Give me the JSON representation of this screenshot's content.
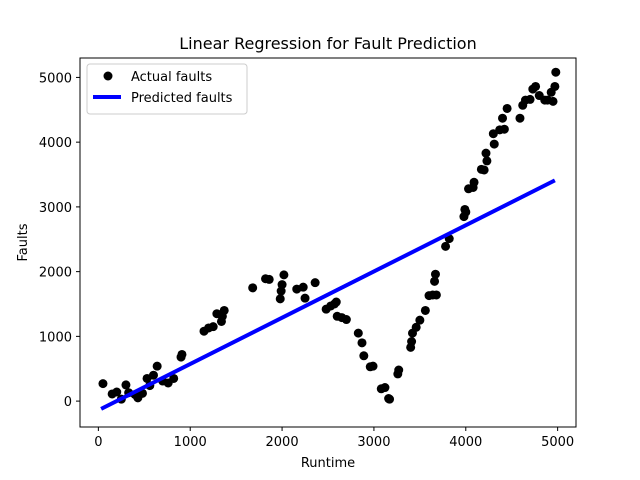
{
  "chart_data": {
    "type": "scatter",
    "title": "Linear Regression for Fault Prediction",
    "xlabel": "Runtime",
    "ylabel": "Faults",
    "xlim": [
      -200,
      5200
    ],
    "ylim": [
      -400,
      5300
    ],
    "xticks": [
      0,
      1000,
      2000,
      3000,
      4000,
      5000
    ],
    "yticks": [
      0,
      1000,
      2000,
      3000,
      4000,
      5000
    ],
    "grid": false,
    "legend_position": "upper-left",
    "series": [
      {
        "name": "Actual faults",
        "kind": "scatter",
        "color": "#000000",
        "points": [
          [
            50,
            270
          ],
          [
            150,
            110
          ],
          [
            200,
            140
          ],
          [
            250,
            30
          ],
          [
            300,
            250
          ],
          [
            330,
            130
          ],
          [
            400,
            100
          ],
          [
            430,
            50
          ],
          [
            480,
            120
          ],
          [
            530,
            350
          ],
          [
            560,
            240
          ],
          [
            600,
            400
          ],
          [
            640,
            540
          ],
          [
            700,
            310
          ],
          [
            760,
            280
          ],
          [
            820,
            350
          ],
          [
            900,
            680
          ],
          [
            910,
            720
          ],
          [
            1150,
            1080
          ],
          [
            1200,
            1130
          ],
          [
            1250,
            1150
          ],
          [
            1290,
            1350
          ],
          [
            1340,
            1230
          ],
          [
            1350,
            1310
          ],
          [
            1370,
            1400
          ],
          [
            1680,
            1750
          ],
          [
            1820,
            1890
          ],
          [
            1860,
            1880
          ],
          [
            1980,
            1580
          ],
          [
            1990,
            1700
          ],
          [
            2000,
            1800
          ],
          [
            2020,
            1950
          ],
          [
            2160,
            1730
          ],
          [
            2230,
            1760
          ],
          [
            2250,
            1590
          ],
          [
            2360,
            1830
          ],
          [
            2480,
            1420
          ],
          [
            2530,
            1470
          ],
          [
            2570,
            1500
          ],
          [
            2590,
            1530
          ],
          [
            2600,
            1310
          ],
          [
            2650,
            1290
          ],
          [
            2700,
            1260
          ],
          [
            2830,
            1050
          ],
          [
            2870,
            900
          ],
          [
            2890,
            700
          ],
          [
            2960,
            530
          ],
          [
            2990,
            540
          ],
          [
            3080,
            190
          ],
          [
            3120,
            210
          ],
          [
            3160,
            40
          ],
          [
            3170,
            30
          ],
          [
            3260,
            420
          ],
          [
            3270,
            480
          ],
          [
            3400,
            830
          ],
          [
            3410,
            920
          ],
          [
            3420,
            1050
          ],
          [
            3460,
            1140
          ],
          [
            3500,
            1250
          ],
          [
            3560,
            1400
          ],
          [
            3600,
            1630
          ],
          [
            3640,
            1640
          ],
          [
            3660,
            1850
          ],
          [
            3670,
            1960
          ],
          [
            3680,
            1640
          ],
          [
            3780,
            2390
          ],
          [
            3820,
            2510
          ],
          [
            3980,
            2850
          ],
          [
            3990,
            2960
          ],
          [
            4000,
            2920
          ],
          [
            4030,
            3280
          ],
          [
            4080,
            3300
          ],
          [
            4090,
            3380
          ],
          [
            4170,
            3580
          ],
          [
            4200,
            3570
          ],
          [
            4220,
            3830
          ],
          [
            4230,
            3710
          ],
          [
            4300,
            4130
          ],
          [
            4310,
            3970
          ],
          [
            4370,
            4190
          ],
          [
            4400,
            4370
          ],
          [
            4420,
            4200
          ],
          [
            4450,
            4520
          ],
          [
            4590,
            4370
          ],
          [
            4620,
            4570
          ],
          [
            4650,
            4650
          ],
          [
            4700,
            4660
          ],
          [
            4730,
            4820
          ],
          [
            4760,
            4860
          ],
          [
            4800,
            4720
          ],
          [
            4860,
            4650
          ],
          [
            4890,
            4650
          ],
          [
            4930,
            4770
          ],
          [
            4950,
            4630
          ],
          [
            4970,
            4860
          ],
          [
            4980,
            5080
          ]
        ]
      },
      {
        "name": "Predicted faults",
        "kind": "line",
        "color": "#0000ff",
        "points": [
          [
            30,
            -120
          ],
          [
            4970,
            3410
          ]
        ]
      }
    ]
  }
}
